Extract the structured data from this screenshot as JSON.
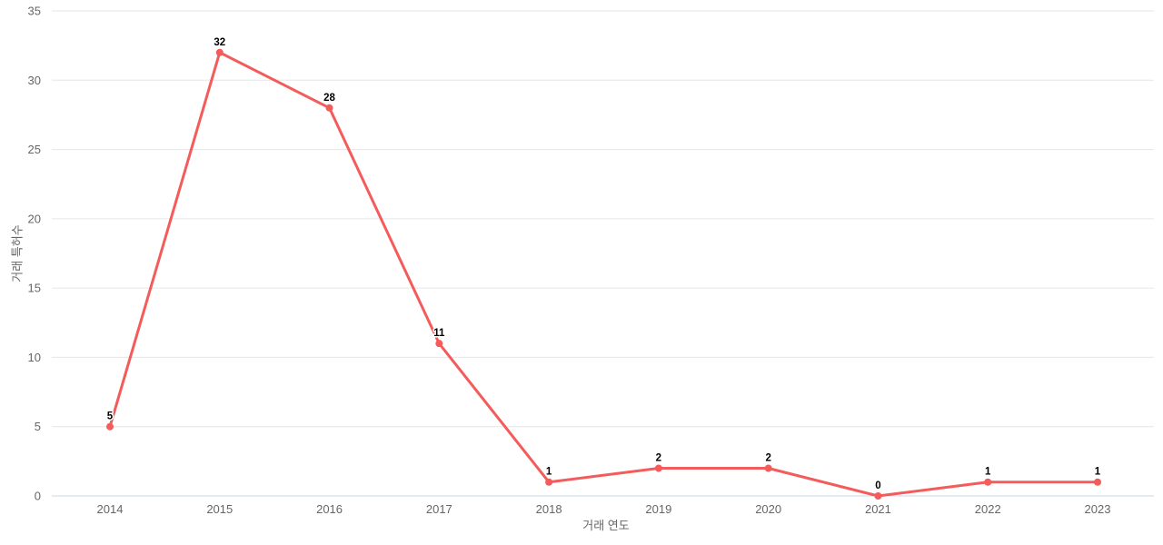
{
  "chart_data": {
    "type": "line",
    "categories": [
      "2014",
      "2015",
      "2016",
      "2017",
      "2018",
      "2019",
      "2020",
      "2021",
      "2022",
      "2023"
    ],
    "values": [
      5,
      32,
      28,
      11,
      1,
      2,
      2,
      0,
      1,
      1
    ],
    "title": "",
    "xlabel": "거래 연도",
    "ylabel": "거래 특허수",
    "ylim": [
      0,
      35
    ],
    "y_ticks": [
      0,
      5,
      10,
      15,
      20,
      25,
      30,
      35
    ],
    "grid": "horizontal",
    "legend": "none",
    "data_labels_shown": true,
    "colors": {
      "line": "#f45b5b",
      "marker": "#f45b5b",
      "grid": "#e6e6e6",
      "axis_line": "#ccd6eb",
      "tick_label": "#666666",
      "axis_title": "#666666",
      "data_label": "#000000",
      "background": "#ffffff"
    }
  }
}
